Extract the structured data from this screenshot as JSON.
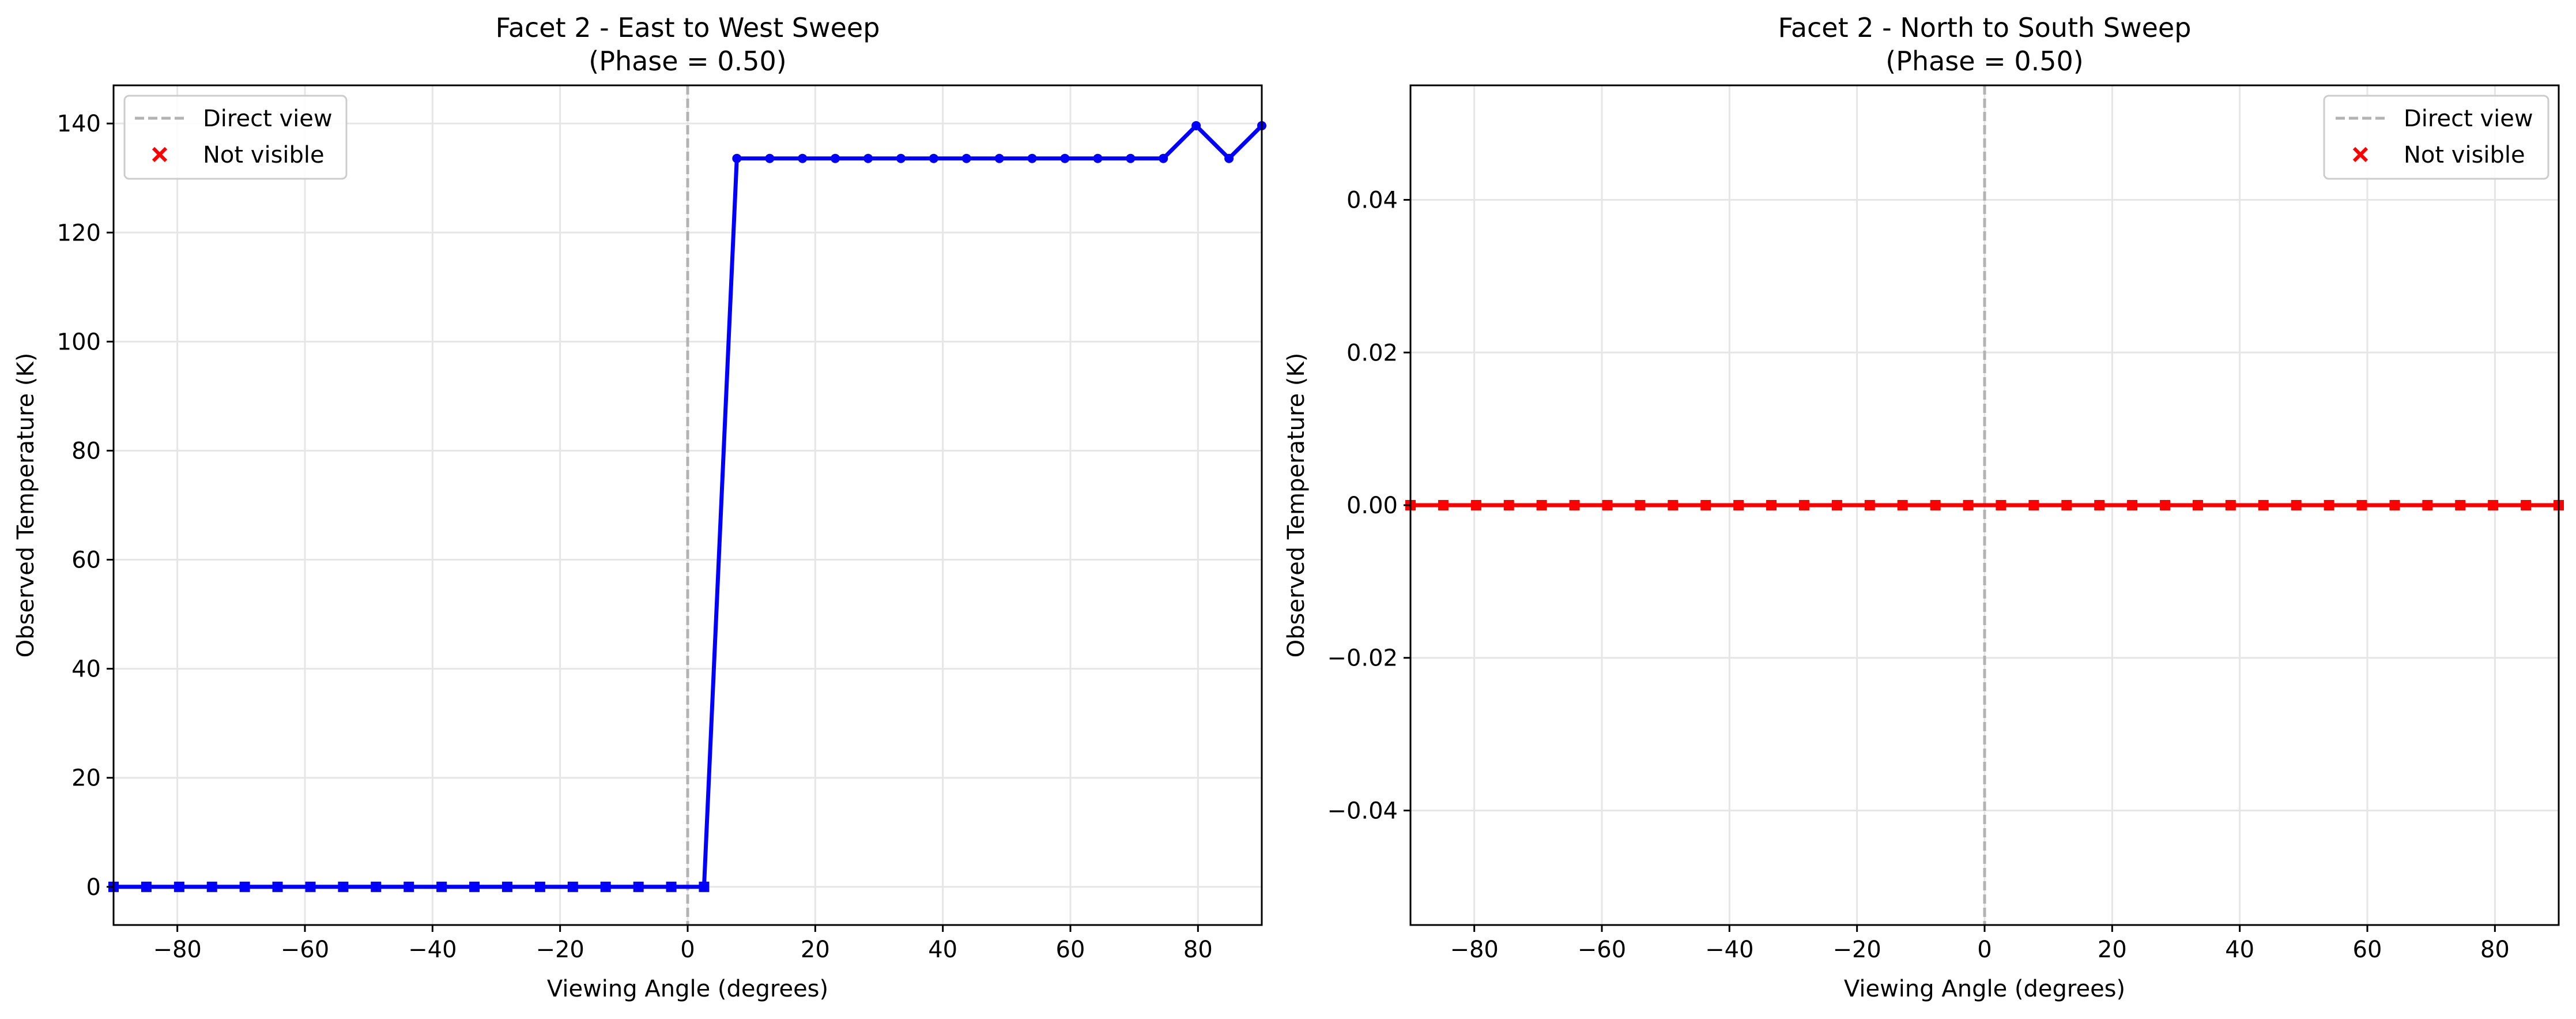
{
  "chart_data": [
    {
      "type": "line",
      "title": "Facet 2 - East to West Sweep",
      "subtitle": "(Phase = 0.50)",
      "xlabel": "Viewing Angle (degrees)",
      "ylabel": "Observed Temperature (K)",
      "xlim": [
        -90,
        90
      ],
      "ylim": [
        -7,
        147
      ],
      "xticks": [
        -80,
        -60,
        -40,
        -20,
        0,
        20,
        40,
        60,
        80
      ],
      "yticks": [
        0,
        20,
        40,
        60,
        80,
        100,
        120,
        140
      ],
      "xtick_labels": [
        "−80",
        "−60",
        "−40",
        "−20",
        "0",
        "20",
        "40",
        "60",
        "80"
      ],
      "ytick_labels": [
        "0",
        "20",
        "40",
        "60",
        "80",
        "100",
        "120",
        "140"
      ],
      "grid": true,
      "legend_position": "top-left",
      "legend": {
        "direct_view": "Direct view",
        "not_visible": "Not visible"
      },
      "direct_view_x": 0,
      "line_color": "#0000ff",
      "x": [
        -90,
        -84.86,
        -79.71,
        -74.57,
        -69.43,
        -64.29,
        -59.14,
        -54,
        -48.86,
        -43.71,
        -38.57,
        -33.43,
        -28.29,
        -23.14,
        -18,
        -12.86,
        -7.71,
        -2.57,
        2.57,
        7.71,
        12.86,
        18,
        23.14,
        28.29,
        33.43,
        38.57,
        43.71,
        48.86,
        54,
        59.14,
        64.29,
        69.43,
        74.57,
        79.71,
        84.86,
        90
      ],
      "y": [
        0,
        0,
        0,
        0,
        0,
        0,
        0,
        0,
        0,
        0,
        0,
        0,
        0,
        0,
        0,
        0,
        0,
        0,
        0,
        133.6,
        133.6,
        133.6,
        133.6,
        133.6,
        133.6,
        133.6,
        133.6,
        133.6,
        133.6,
        133.6,
        133.6,
        133.6,
        133.6,
        139.6,
        133.6,
        139.6
      ],
      "visible": [
        false,
        false,
        false,
        false,
        false,
        false,
        false,
        false,
        false,
        false,
        false,
        false,
        false,
        false,
        false,
        false,
        false,
        false,
        false,
        true,
        true,
        true,
        true,
        true,
        true,
        true,
        true,
        true,
        true,
        true,
        true,
        true,
        true,
        true,
        true,
        true
      ]
    },
    {
      "type": "line",
      "title": "Facet 2 - North to South Sweep",
      "subtitle": "(Phase = 0.50)",
      "xlabel": "Viewing Angle (degrees)",
      "ylabel": "Observed Temperature (K)",
      "xlim": [
        -90,
        90
      ],
      "ylim": [
        -0.055,
        0.055
      ],
      "xticks": [
        -80,
        -60,
        -40,
        -20,
        0,
        20,
        40,
        60,
        80
      ],
      "yticks": [
        -0.04,
        -0.02,
        0,
        0.02,
        0.04
      ],
      "xtick_labels": [
        "−80",
        "−60",
        "−40",
        "−20",
        "0",
        "20",
        "40",
        "60",
        "80"
      ],
      "ytick_labels": [
        "−0.04",
        "−0.02",
        "0.00",
        "0.02",
        "0.04"
      ],
      "grid": true,
      "legend_position": "top-right",
      "legend": {
        "direct_view": "Direct view",
        "not_visible": "Not visible"
      },
      "direct_view_x": 0,
      "line_color": "#ff0000",
      "x": [
        -90,
        -84.86,
        -79.71,
        -74.57,
        -69.43,
        -64.29,
        -59.14,
        -54,
        -48.86,
        -43.71,
        -38.57,
        -33.43,
        -28.29,
        -23.14,
        -18,
        -12.86,
        -7.71,
        -2.57,
        2.57,
        7.71,
        12.86,
        18,
        23.14,
        28.29,
        33.43,
        38.57,
        43.71,
        48.86,
        54,
        59.14,
        64.29,
        69.43,
        74.57,
        79.71,
        84.86,
        90
      ],
      "y": [
        0,
        0,
        0,
        0,
        0,
        0,
        0,
        0,
        0,
        0,
        0,
        0,
        0,
        0,
        0,
        0,
        0,
        0,
        0,
        0,
        0,
        0,
        0,
        0,
        0,
        0,
        0,
        0,
        0,
        0,
        0,
        0,
        0,
        0,
        0,
        0
      ],
      "visible": [
        false,
        false,
        false,
        false,
        false,
        false,
        false,
        false,
        false,
        false,
        false,
        false,
        false,
        false,
        false,
        false,
        false,
        false,
        false,
        false,
        false,
        false,
        false,
        false,
        false,
        false,
        false,
        false,
        false,
        false,
        false,
        false,
        false,
        false,
        false,
        false
      ]
    }
  ]
}
